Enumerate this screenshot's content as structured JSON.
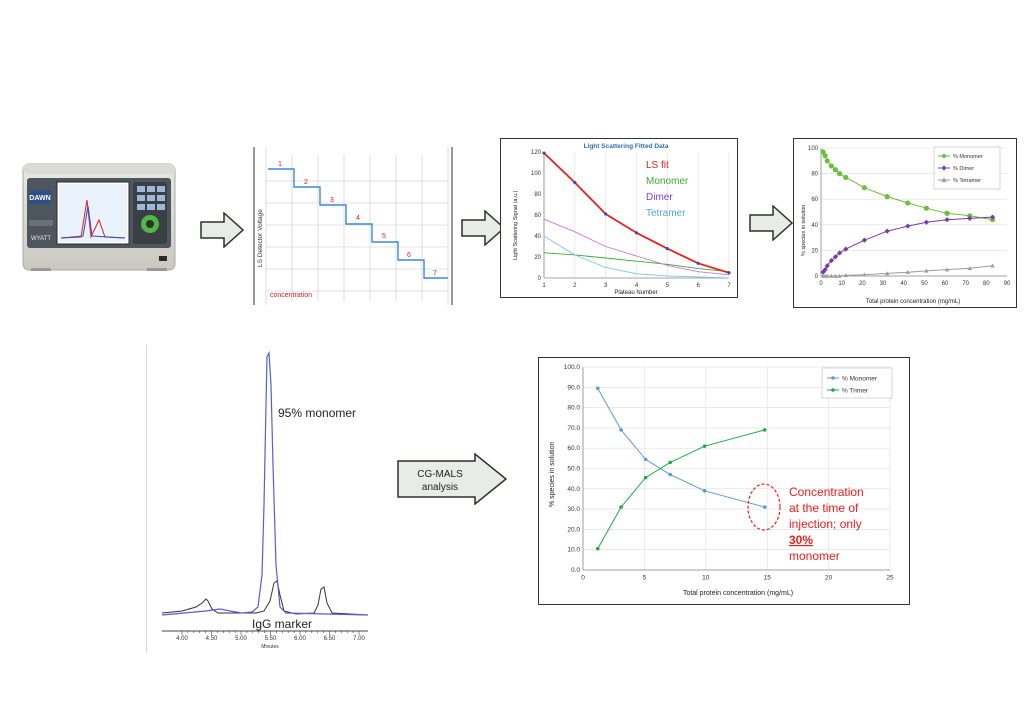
{
  "instrument": {
    "brand_label": "DAWN",
    "maker_label": "WYATT"
  },
  "step_chart": {
    "ylabel": "LS Detector Voltage",
    "xlabel": "concentration",
    "step_labels": [
      "1",
      "2",
      "3",
      "4",
      "5",
      "6",
      "7"
    ]
  },
  "ls_chart": {
    "title": "Light Scattering Fitted Data",
    "ylabel": "Light Scattering Signal (a.u.)",
    "xlabel": "Plateau Number",
    "xticks": [
      "1",
      "2",
      "3",
      "4",
      "5",
      "6",
      "7"
    ],
    "yticks": [
      "0",
      "20",
      "40",
      "60",
      "80",
      "100",
      "120"
    ],
    "legend": [
      {
        "label": "LS fit",
        "color": "#e8201c"
      },
      {
        "label": "Monomer",
        "color": "#3aaa35"
      },
      {
        "label": "Dimer",
        "color": "#8e3fc0"
      },
      {
        "label": "Tetramer",
        "color": "#4fa6e3"
      }
    ]
  },
  "species_chart_1": {
    "ylabel": "% species in solution",
    "xlabel": "Total protein concentration (mg/mL)",
    "xticks": [
      "0",
      "10",
      "20",
      "30",
      "40",
      "50",
      "60",
      "70",
      "80",
      "90"
    ],
    "yticks": [
      "0",
      "20",
      "40",
      "60",
      "80",
      "100"
    ],
    "legend": [
      "% Monomer",
      "% Dimer",
      "% Tetramer"
    ]
  },
  "chromatogram": {
    "annotation_monomer": "95% monomer",
    "annotation_marker": "IgG marker",
    "xticks": [
      "4.00",
      "4.50",
      "5.00",
      "5.50",
      "6.00",
      "6.50",
      "7.00"
    ],
    "xlabel": "Minutes"
  },
  "arrow_label": {
    "line1": "CG-MALS",
    "line2": "analysis"
  },
  "species_chart_2": {
    "ylabel": "% species in solution",
    "xlabel": "Total protein concentration (mg/mL)",
    "xticks": [
      "0",
      "5",
      "10",
      "15",
      "20",
      "25"
    ],
    "yticks": [
      "0.0",
      "10.0",
      "20.0",
      "30.0",
      "40.0",
      "50.0",
      "60.0",
      "70.0",
      "80.0",
      "90.0",
      "100.0"
    ],
    "legend": [
      "% Monomer",
      "% Trimer"
    ],
    "callout_line1": "Concentration",
    "callout_line2": "at the time of",
    "callout_line3": "injection; only",
    "callout_highlight": "30%",
    "callout_line5": "monomer"
  },
  "chart_data": [
    {
      "type": "line",
      "title": "Light Scattering Fitted Data",
      "xlabel": "Plateau Number",
      "ylabel": "Light Scattering Signal (a.u.)",
      "xlim": [
        1,
        7
      ],
      "ylim": [
        0,
        120
      ],
      "x": [
        1,
        2,
        3,
        4,
        5,
        6,
        7
      ],
      "series": [
        {
          "name": "LS fit",
          "values": [
            119,
            91,
            61,
            43,
            28,
            14,
            5
          ]
        },
        {
          "name": "Monomer",
          "values": [
            24,
            22,
            19,
            16,
            13,
            9,
            6
          ]
        },
        {
          "name": "Dimer",
          "values": [
            56,
            44,
            30,
            21,
            12,
            6,
            3
          ]
        },
        {
          "name": "Tetramer",
          "values": [
            40,
            22,
            10,
            4,
            2,
            1,
            0
          ]
        }
      ]
    },
    {
      "type": "line",
      "xlabel": "Total protein concentration (mg/mL)",
      "ylabel": "% species in solution",
      "xlim": [
        0,
        90
      ],
      "ylim": [
        0,
        100
      ],
      "series": [
        {
          "name": "% Monomer",
          "x": [
            1,
            2,
            3,
            5,
            7,
            9,
            12,
            21,
            32,
            42,
            51,
            61,
            72,
            83
          ],
          "y": [
            97,
            94,
            90,
            86,
            83,
            80,
            77,
            69,
            62,
            57,
            53,
            49,
            47,
            44
          ]
        },
        {
          "name": "% Dimer",
          "x": [
            1,
            2,
            3,
            5,
            7,
            9,
            12,
            21,
            32,
            42,
            51,
            61,
            72,
            83
          ],
          "y": [
            3,
            5,
            8,
            12,
            15,
            18,
            21,
            28,
            35,
            39,
            42,
            44,
            45,
            46
          ]
        },
        {
          "name": "% Tetramer",
          "x": [
            1,
            2,
            3,
            5,
            7,
            9,
            12,
            21,
            32,
            42,
            51,
            61,
            72,
            83
          ],
          "y": [
            0,
            0,
            0,
            0,
            0,
            0,
            0.5,
            1,
            2,
            3,
            4,
            5,
            6,
            8
          ]
        }
      ]
    },
    {
      "type": "line",
      "xlabel": "Total protein concentration (mg/mL)",
      "ylabel": "% species in solution",
      "xlim": [
        0,
        25
      ],
      "ylim": [
        0,
        100
      ],
      "series": [
        {
          "name": "% Monomer",
          "x": [
            1.2,
            3.1,
            5.1,
            7.1,
            9.9,
            14.8
          ],
          "y": [
            89.5,
            69,
            54.5,
            47,
            39,
            31
          ]
        },
        {
          "name": "% Trimer",
          "x": [
            1.2,
            3.1,
            5.1,
            7.1,
            9.9,
            14.8
          ],
          "y": [
            10.5,
            31,
            45.5,
            53,
            61,
            69
          ]
        }
      ]
    }
  ],
  "colors": {
    "arrow_fill": "#e8ece6",
    "step_line": "#3c8ad6",
    "step_label": "#e01b22",
    "callout": "#e8201c"
  }
}
